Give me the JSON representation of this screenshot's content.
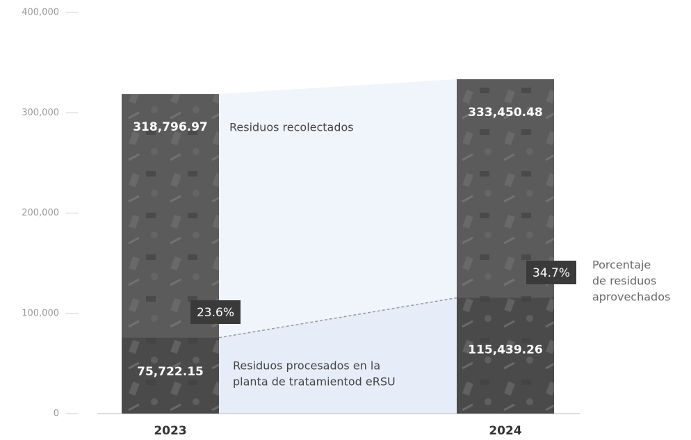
{
  "chart_data": {
    "type": "bar",
    "categories": [
      "2023",
      "2024"
    ],
    "series": [
      {
        "name": "Residuos recolectados",
        "color": "#5b5b5b",
        "values": [
          318796.97,
          333450.48
        ],
        "value_labels": [
          "318,796.97",
          "333,450.48"
        ]
      },
      {
        "name": "Residuos procesados en la planta de tratamientod eRSU",
        "color": "#4a4a4a",
        "values": [
          75722.15,
          115439.26
        ],
        "value_labels": [
          "75,722.15",
          "115,439.26"
        ]
      }
    ],
    "annotations": {
      "collected": [
        "Residuos recolectados"
      ],
      "processed": [
        "Residuos procesados en la",
        "planta de tratamientod eRSU"
      ],
      "share": [
        "Porcentaje",
        "de residuos",
        "aprovechados"
      ]
    },
    "share": {
      "values": [
        23.6,
        34.7
      ],
      "value_labels": [
        "23.6%",
        "34.7%"
      ],
      "color": "#3a3a3a"
    },
    "ylim": [
      0,
      400000
    ],
    "yticks": [
      0,
      {
        "value": 100000,
        "label": "100,000"
      },
      {
        "value": 200000,
        "label": "200,000"
      },
      {
        "value": 300000,
        "label": "300,000"
      },
      {
        "value": 400000,
        "label": "400,000"
      }
    ],
    "grid": false
  }
}
